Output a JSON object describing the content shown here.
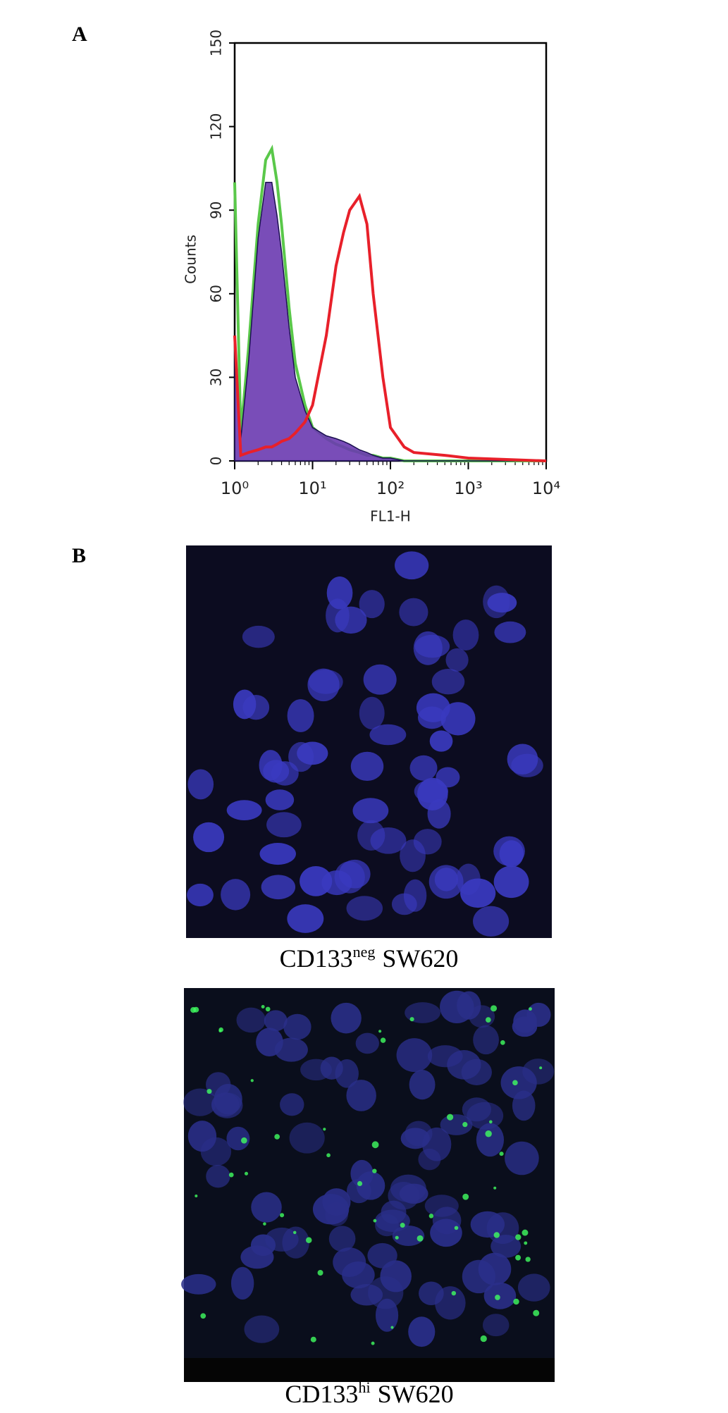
{
  "chart_data": {
    "type": "line",
    "xscale": "log",
    "x_label": "FL1-H",
    "y_label": "Counts",
    "x": [
      1,
      1.2,
      1.5,
      2,
      2.5,
      3,
      3.5,
      4,
      5,
      6,
      8,
      10,
      15,
      20,
      25,
      30,
      40,
      50,
      60,
      80,
      100,
      150,
      200,
      500,
      1000,
      10000
    ],
    "series": [
      {
        "color": "#5ac84a",
        "fill": false,
        "values": [
          100,
          10,
          40,
          85,
          108,
          112,
          100,
          85,
          55,
          35,
          20,
          12,
          8,
          6,
          5,
          4,
          3,
          2,
          2,
          1,
          1,
          0,
          0,
          0,
          0,
          0
        ]
      },
      {
        "color": "#6a3ab0",
        "fill": true,
        "values": [
          40,
          8,
          35,
          80,
          100,
          100,
          88,
          75,
          48,
          30,
          18,
          12,
          9,
          8,
          7,
          6,
          4,
          3,
          2,
          1,
          1,
          0,
          0,
          0,
          0,
          0
        ]
      },
      {
        "color": "#e8202a",
        "fill": false,
        "values": [
          45,
          2,
          3,
          4,
          5,
          5,
          6,
          7,
          8,
          10,
          14,
          20,
          45,
          70,
          82,
          90,
          95,
          85,
          60,
          30,
          12,
          5,
          3,
          2,
          1,
          0
        ]
      }
    ],
    "xlim": [
      1,
      10000
    ],
    "xticks": [
      {
        "value": 1,
        "label": "10⁰"
      },
      {
        "value": 10,
        "label": "10¹"
      },
      {
        "value": 100,
        "label": "10²"
      },
      {
        "value": 1000,
        "label": "10³"
      },
      {
        "value": 10000,
        "label": "10⁴"
      }
    ],
    "ylim": [
      0,
      150
    ],
    "yticks": [
      0,
      30,
      60,
      90,
      120,
      150
    ]
  },
  "panel_labels": [
    "A",
    "B"
  ],
  "images": [
    {
      "caption": {
        "text": "CD133",
        "sup": "neg",
        "suffix": "SW620"
      }
    },
    {
      "caption": {
        "text": "CD133",
        "sup": "hi",
        "suffix": "SW620"
      }
    }
  ]
}
